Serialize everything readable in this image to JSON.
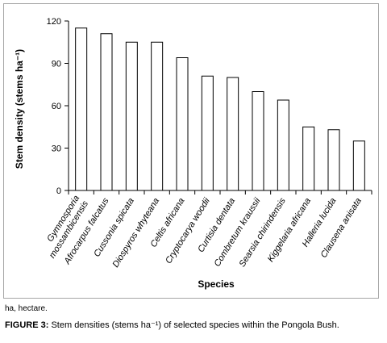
{
  "chart_data": {
    "type": "bar",
    "xlabel": "Species",
    "ylabel": "Stem density (stems ha⁻¹)",
    "yticks": [
      "0",
      "30",
      "60",
      "90",
      "120"
    ],
    "ylim": [
      0,
      120
    ],
    "grid": false,
    "categories": [
      "Gymnosporia mossambicensis",
      "Afrocarpus falcatus",
      "Cussonia spicata",
      "Diospyros whyteana",
      "Celtis africana",
      "Cryptocarya woodii",
      "Curtisia dentata",
      "Combretum kraussii",
      "Searsia chirindensis",
      "Kiggelaria africana",
      "Halleria lucida",
      "Clausena anisata"
    ],
    "values": [
      115,
      111,
      105,
      105,
      94,
      81,
      80,
      70,
      64,
      45,
      43,
      35
    ]
  },
  "footnote": "ha, hectare.",
  "caption": {
    "label": "FIGURE 3:",
    "text": " Stem densities (stems ha⁻¹) of selected species within the Pongola Bush."
  }
}
